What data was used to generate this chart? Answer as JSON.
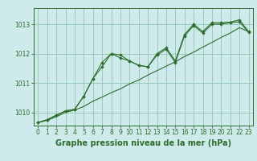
{
  "title": "Graphe pression niveau de la mer (hPa)",
  "bg_color": "#ceeaea",
  "grid_color": "#99ccbb",
  "line_color": "#2d6e2d",
  "marker_color": "#2d6e2d",
  "xlim": [
    -0.5,
    23.5
  ],
  "ylim": [
    1009.55,
    1013.55
  ],
  "xticks": [
    0,
    1,
    2,
    3,
    4,
    5,
    6,
    7,
    8,
    9,
    10,
    11,
    12,
    13,
    14,
    15,
    16,
    17,
    18,
    19,
    20,
    21,
    22,
    23
  ],
  "yticks": [
    1010,
    1011,
    1012,
    1013
  ],
  "series_wavy1": [
    1009.65,
    1009.75,
    1009.9,
    1010.05,
    1010.1,
    1010.55,
    1011.15,
    1011.7,
    1012.0,
    1011.95,
    1011.75,
    1011.6,
    1011.55,
    1012.0,
    1012.2,
    1011.75,
    1012.65,
    1013.0,
    1012.75,
    1013.05,
    1013.05,
    1013.07,
    1013.15,
    1012.75
  ],
  "series_wavy2": [
    1009.65,
    1009.75,
    1009.9,
    1010.05,
    1010.1,
    1010.55,
    1011.15,
    1011.55,
    1012.0,
    1011.85,
    1011.75,
    1011.6,
    1011.55,
    1011.95,
    1012.15,
    1011.7,
    1012.6,
    1012.95,
    1012.7,
    1013.0,
    1013.0,
    1013.05,
    1013.08,
    1012.72
  ],
  "series_linear": [
    1009.65,
    1009.73,
    1009.85,
    1010.0,
    1010.08,
    1010.2,
    1010.38,
    1010.52,
    1010.67,
    1010.8,
    1010.97,
    1011.1,
    1011.27,
    1011.42,
    1011.57,
    1011.72,
    1011.9,
    1012.05,
    1012.22,
    1012.38,
    1012.55,
    1012.7,
    1012.88,
    1012.75
  ],
  "title_fontsize": 7,
  "tick_fontsize": 5.5
}
